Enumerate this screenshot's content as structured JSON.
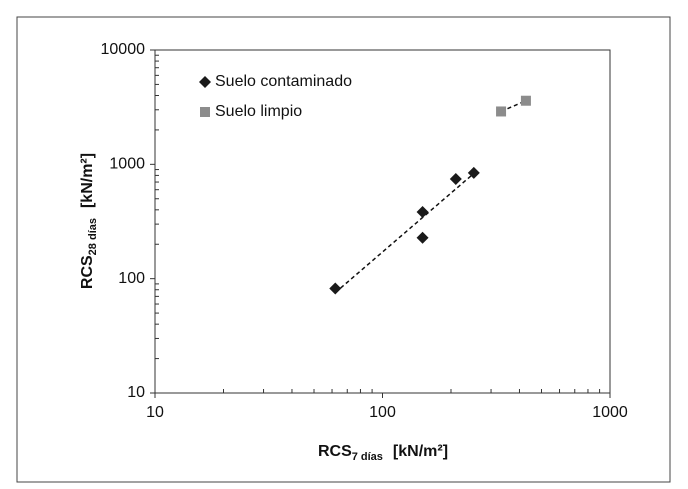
{
  "chart_data": {
    "type": "scatter",
    "x_label": {
      "main": "RCS",
      "sub": "7 días",
      "unit": "[kN/m²]"
    },
    "y_label": {
      "main": "RCS",
      "sub": "28 días",
      "unit": "[kN/m²]"
    },
    "xscale": "log",
    "yscale": "log",
    "xlim": [
      10,
      1000
    ],
    "ylim": [
      10,
      10000
    ],
    "xticks": [
      10,
      100,
      1000
    ],
    "yticks": [
      10,
      100,
      1000,
      10000
    ],
    "grid": false,
    "legend": "upper left",
    "series": [
      {
        "name": "Suelo contaminado",
        "color": "#1a1a1a",
        "marker": "diamond",
        "trendline": true,
        "x": [
          62,
          150,
          150,
          210,
          252
        ],
        "values": [
          82,
          228,
          383,
          745,
          841
        ]
      },
      {
        "name": "Suelo limpio",
        "color": "#8c8c8c",
        "marker": "square",
        "trendline": true,
        "x": [
          332,
          427
        ],
        "values": [
          2900,
          3600
        ]
      }
    ]
  }
}
